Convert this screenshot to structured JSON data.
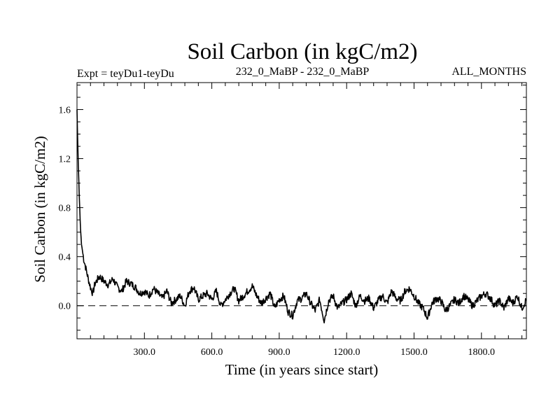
{
  "chart_data": {
    "type": "line",
    "title": "Soil Carbon (in kgC/m2)",
    "subtitle_left": "Expt = teyDu1-teyDu",
    "subtitle_center": "232_0_MaBP - 232_0_MaBP",
    "subtitle_right": "ALL_MONTHS",
    "xlabel": "Time (in years since start)",
    "ylabel": "Soil Carbon (in kgC/m2)",
    "xlim": [
      0,
      2000
    ],
    "ylim": [
      -0.27,
      1.82
    ],
    "xticks": [
      300,
      600,
      900,
      1200,
      1500,
      1800
    ],
    "xtick_labels": [
      "300.0",
      "600.0",
      "900.0",
      "1200.0",
      "1500.0",
      "1800.0"
    ],
    "yticks": [
      0.0,
      0.4,
      0.8,
      1.2,
      1.6
    ],
    "ytick_labels": [
      "0.0",
      "0.4",
      "0.8",
      "1.2",
      "1.6"
    ],
    "reference_line": 0.0,
    "grid": false,
    "line_color": "#000000",
    "series": [
      {
        "x": [
          0,
          5,
          10,
          15,
          20,
          30,
          40,
          50,
          60,
          70,
          80,
          100,
          120,
          140,
          160,
          180,
          200,
          220,
          240,
          260,
          280,
          300,
          320,
          340,
          360,
          380,
          400,
          420,
          440,
          460,
          480,
          500,
          520,
          540,
          560,
          580,
          600,
          620,
          640,
          660,
          680,
          700,
          720,
          740,
          760,
          780,
          800,
          820,
          840,
          860,
          880,
          900,
          920,
          940,
          960,
          980,
          1000,
          1020,
          1040,
          1060,
          1080,
          1100,
          1120,
          1140,
          1160,
          1180,
          1200,
          1220,
          1240,
          1260,
          1280,
          1300,
          1320,
          1340,
          1360,
          1380,
          1400,
          1420,
          1440,
          1460,
          1480,
          1500,
          1520,
          1540,
          1560,
          1580,
          1600,
          1620,
          1640,
          1660,
          1680,
          1700,
          1720,
          1740,
          1760,
          1780,
          1800,
          1820,
          1840,
          1860,
          1880,
          1900,
          1920,
          1940,
          1960,
          1980,
          2000
        ],
        "y": [
          1.6,
          1.2,
          0.9,
          0.65,
          0.5,
          0.38,
          0.3,
          0.22,
          0.15,
          0.1,
          0.18,
          0.24,
          0.2,
          0.17,
          0.22,
          0.15,
          0.12,
          0.2,
          0.18,
          0.15,
          0.1,
          0.12,
          0.08,
          0.14,
          0.1,
          0.06,
          0.12,
          0.02,
          0.05,
          0.08,
          0.0,
          0.12,
          0.15,
          0.05,
          0.08,
          0.1,
          0.05,
          0.12,
          0.0,
          0.05,
          0.1,
          0.14,
          0.04,
          0.08,
          0.12,
          0.16,
          0.08,
          0.02,
          0.06,
          0.1,
          -0.02,
          0.05,
          0.08,
          -0.05,
          -0.08,
          0.04,
          0.06,
          0.1,
          0.02,
          -0.04,
          0.05,
          -0.12,
          0.04,
          0.08,
          -0.02,
          0.02,
          0.05,
          0.1,
          0.0,
          0.08,
          0.04,
          0.06,
          -0.02,
          0.04,
          0.08,
          0.02,
          0.12,
          0.06,
          0.04,
          0.12,
          0.14,
          0.08,
          0.02,
          -0.02,
          -0.1,
          0.02,
          0.06,
          0.04,
          -0.04,
          0.0,
          0.05,
          0.02,
          0.08,
          0.05,
          0.0,
          0.04,
          0.08,
          0.1,
          0.06,
          0.0,
          0.04,
          -0.02,
          0.06,
          0.02,
          0.08,
          -0.02,
          0.05
        ]
      }
    ]
  }
}
